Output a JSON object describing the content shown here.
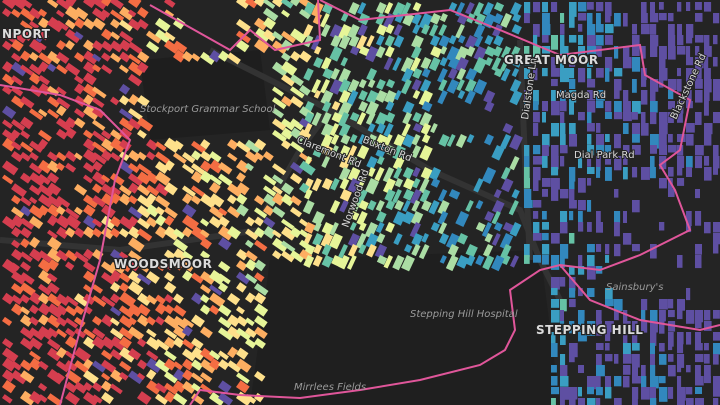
{
  "labels": {
    "places": [
      "NPORT",
      "GREAT MOOR",
      "WOODSMOOR",
      "STEPPING HILL"
    ],
    "landmarks": [
      "Stockport Grammar School",
      "Stepping Hill Hospital",
      "Sainsbury's",
      "Mirrlees Fields"
    ],
    "streets": [
      "Buxton Rd",
      "Claremont Rd",
      "Dial Park Rd",
      "Magda Rd",
      "Dialstone Ln",
      "Blackstone Rd",
      "Norwood Rd"
    ]
  }
}
